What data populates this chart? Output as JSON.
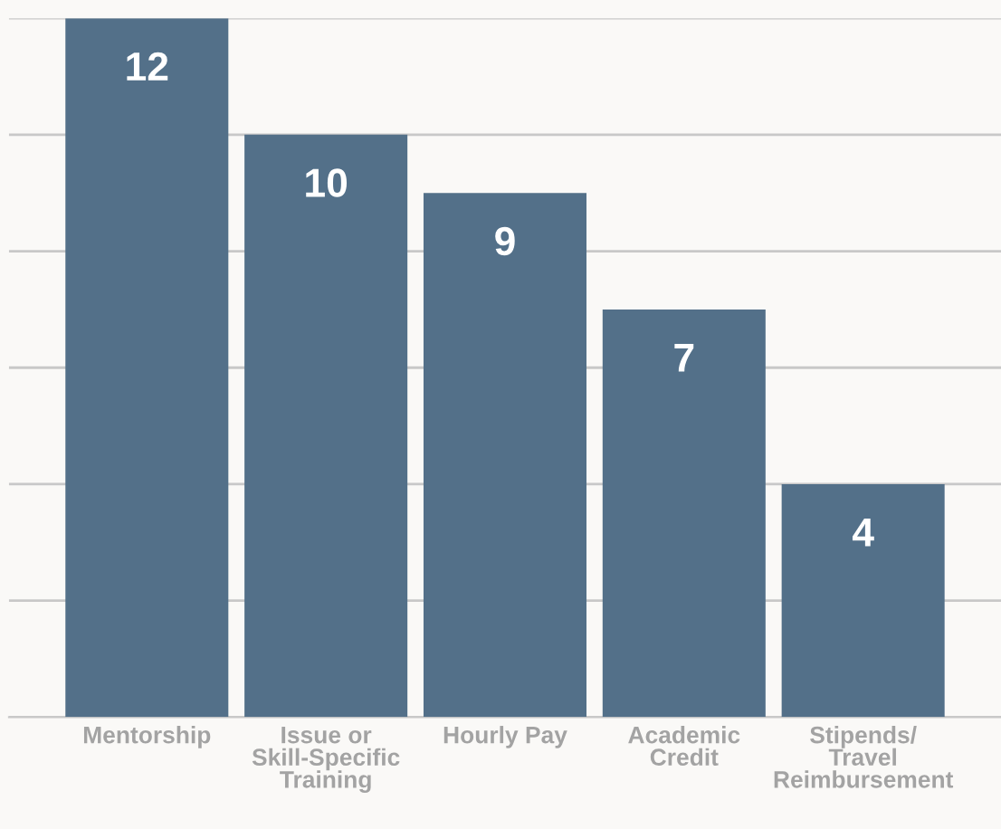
{
  "chart_data": {
    "type": "bar",
    "categories": [
      "Mentorship",
      "Issue or\nSkill-Specific\nTraining",
      "Hourly Pay",
      "Academic\nCredit",
      "Stipends/\nTravel\nReimbursement"
    ],
    "values": [
      12,
      10,
      9,
      7,
      4
    ],
    "color": "#537089",
    "data_labels": true,
    "ylim": [
      0,
      12
    ],
    "yticks": [
      {
        "value": 0,
        "label": null
      },
      {
        "value": 2,
        "label": null
      },
      {
        "value": 4,
        "label": null
      },
      {
        "value": 6,
        "label": null
      },
      {
        "value": 8,
        "label": null
      },
      {
        "value": 10,
        "label": null
      },
      {
        "value": 12,
        "label": null
      }
    ],
    "grid": "y",
    "tick_labels": "x",
    "legend": false
  }
}
